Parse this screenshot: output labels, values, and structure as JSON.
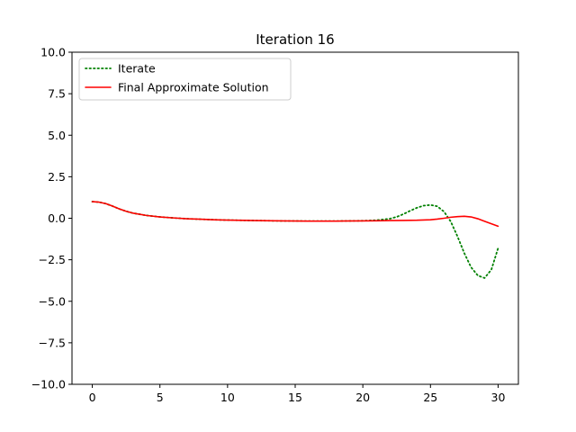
{
  "chart_data": {
    "type": "line",
    "title": "Iteration 16",
    "xlabel": "",
    "ylabel": "",
    "xlim": [
      -1.5,
      31.5
    ],
    "ylim": [
      -10.0,
      10.0
    ],
    "xticks": [
      0,
      5,
      10,
      15,
      20,
      25,
      30
    ],
    "xtick_labels": [
      "0",
      "5",
      "10",
      "15",
      "20",
      "25",
      "30"
    ],
    "yticks": [
      -10.0,
      -7.5,
      -5.0,
      -2.5,
      0.0,
      2.5,
      5.0,
      7.5,
      10.0
    ],
    "ytick_labels": [
      "−10.0",
      "−7.5",
      "−5.0",
      "−2.5",
      "0.0",
      "2.5",
      "5.0",
      "7.5",
      "10.0"
    ],
    "grid": false,
    "legend_position": "upper-left",
    "series": [
      {
        "name": "Iterate",
        "color": "#008000",
        "style": "dotted",
        "x": [
          0,
          0.5,
          1,
          1.5,
          2,
          2.5,
          3,
          4,
          5,
          6,
          7,
          8,
          9,
          10,
          12,
          14,
          16,
          18,
          20,
          21,
          22,
          22.5,
          23,
          23.5,
          24,
          24.5,
          25,
          25.5,
          26,
          26.5,
          27,
          27.5,
          28,
          28.5,
          29,
          29.5,
          30
        ],
        "y": [
          1.0,
          0.97,
          0.88,
          0.73,
          0.56,
          0.42,
          0.31,
          0.17,
          0.08,
          0.02,
          -0.03,
          -0.06,
          -0.09,
          -0.11,
          -0.14,
          -0.16,
          -0.17,
          -0.17,
          -0.15,
          -0.12,
          -0.03,
          0.08,
          0.25,
          0.45,
          0.63,
          0.76,
          0.8,
          0.72,
          0.4,
          -0.2,
          -1.1,
          -2.1,
          -2.95,
          -3.45,
          -3.6,
          -3.1,
          -1.8
        ]
      },
      {
        "name": "Final Approximate Solution",
        "color": "#ff0000",
        "style": "solid",
        "x": [
          0,
          0.5,
          1,
          1.5,
          2,
          2.5,
          3,
          4,
          5,
          6,
          7,
          8,
          9,
          10,
          12,
          14,
          16,
          18,
          20,
          21,
          22,
          23,
          24,
          25,
          25.5,
          26,
          26.5,
          27,
          27.5,
          28,
          28.5,
          29,
          29.5,
          30
        ],
        "y": [
          1.0,
          0.97,
          0.88,
          0.73,
          0.56,
          0.42,
          0.31,
          0.17,
          0.08,
          0.02,
          -0.03,
          -0.06,
          -0.09,
          -0.11,
          -0.14,
          -0.16,
          -0.17,
          -0.17,
          -0.16,
          -0.15,
          -0.14,
          -0.13,
          -0.12,
          -0.09,
          -0.05,
          0.0,
          0.06,
          0.1,
          0.12,
          0.08,
          -0.03,
          -0.18,
          -0.33,
          -0.48
        ]
      }
    ]
  }
}
